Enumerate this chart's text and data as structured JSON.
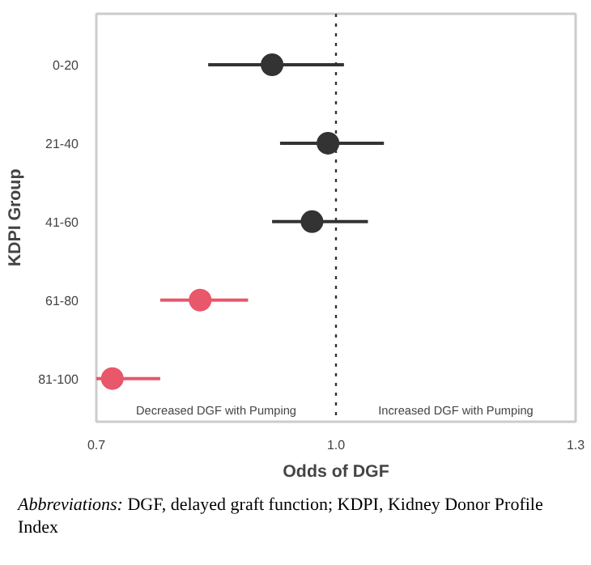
{
  "chart_data": {
    "type": "scatter",
    "orientation": "horizontal",
    "xlabel": "Odds of DGF",
    "ylabel": "KDPI Group",
    "categories": [
      "0-20",
      "21-40",
      "41-60",
      "61-80",
      "81-100"
    ],
    "values": [
      0.92,
      0.99,
      0.97,
      0.83,
      0.72
    ],
    "colors": [
      "#333333",
      "#333333",
      "#333333",
      "#e8576a",
      "#e8576a"
    ],
    "errors": [
      [
        0.84,
        1.01
      ],
      [
        0.93,
        1.06
      ],
      [
        0.92,
        1.04
      ],
      [
        0.78,
        0.89
      ],
      [
        0.7,
        0.78
      ]
    ],
    "xlim": [
      0.7,
      1.3
    ],
    "xticks": [
      0.7,
      {
        "value": 1.0,
        "label": "1.0"
      },
      1.3
    ],
    "ref_lines": [
      {
        "axis": "x",
        "value": 1.0,
        "label": null,
        "line_style": "dotted",
        "color": "#333333"
      }
    ],
    "marker": "circle",
    "grid": false,
    "annotations": [
      "Decreased DGF with Pumping",
      "Increased DGF with Pumping",
      "Abbreviations: DGF, delayed graft function; KDPI, Kidney Donor Profile Index"
    ]
  }
}
